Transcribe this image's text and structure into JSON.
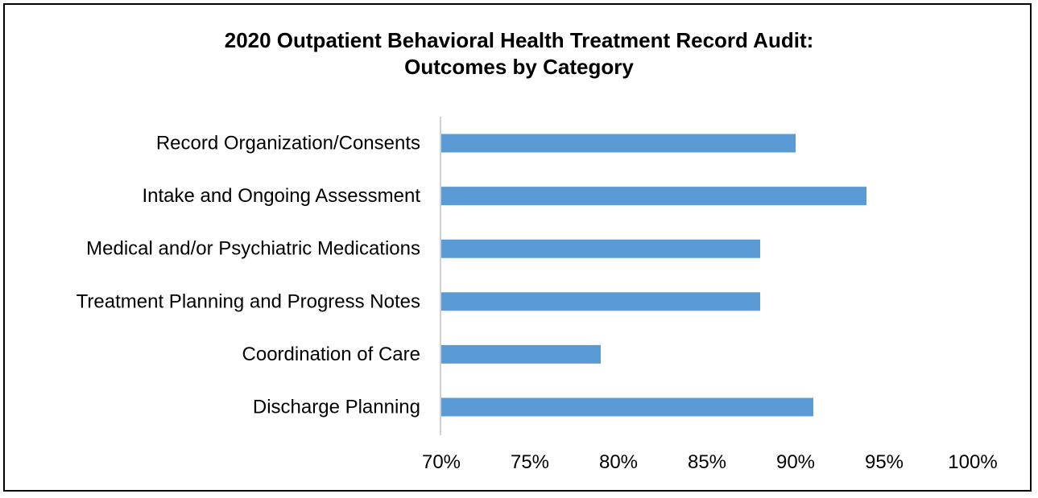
{
  "chart_data": {
    "type": "bar",
    "orientation": "horizontal",
    "title_lines": [
      "2020 Outpatient Behavioral Health Treatment Record Audit:",
      "Outcomes by Category"
    ],
    "categories": [
      "Record Organization/Consents",
      "Intake and Ongoing Assessment",
      "Medical and/or Psychiatric Medications",
      "Treatment Planning and Progress Notes",
      "Coordination of Care",
      "Discharge Planning"
    ],
    "values": [
      90,
      94,
      88,
      88,
      79,
      91
    ],
    "value_unit": "%",
    "xlim": [
      70,
      100
    ],
    "xticks": [
      70,
      75,
      80,
      85,
      90,
      95,
      100
    ],
    "xtick_labels": [
      "70%",
      "75%",
      "80%",
      "85%",
      "90%",
      "95%",
      "100%"
    ],
    "bar_color": "#5b9bd5",
    "axis_color": "#d0d0d0",
    "grid": false,
    "legend": "none"
  }
}
